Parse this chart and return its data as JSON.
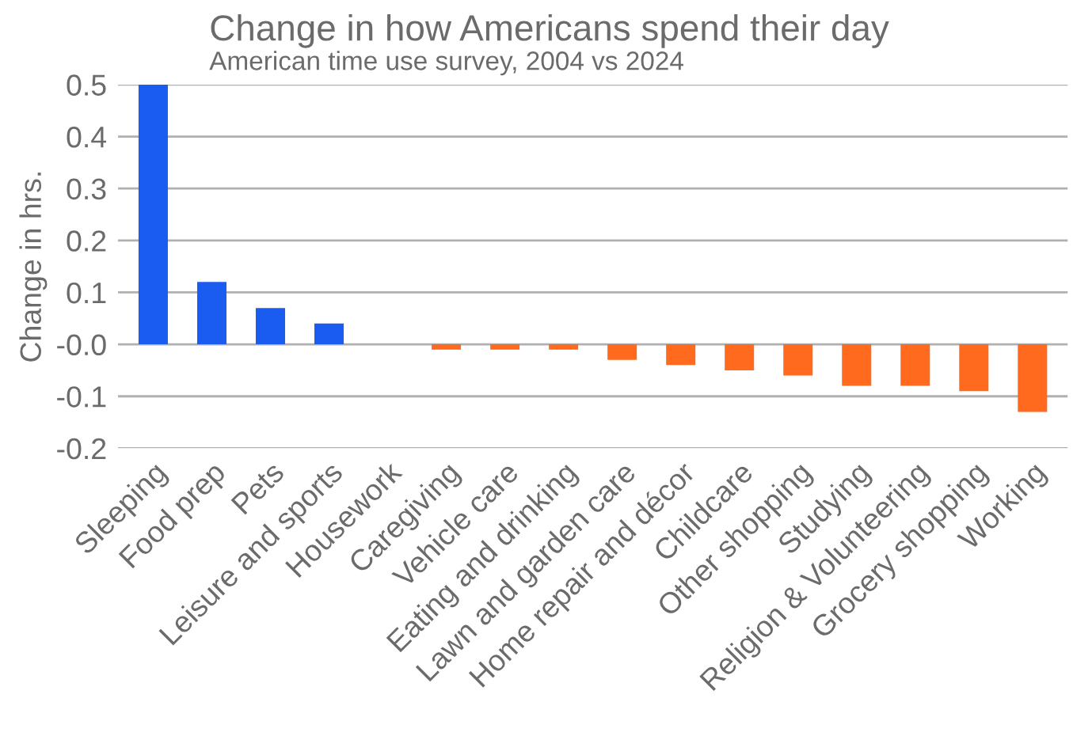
{
  "chart_data": {
    "type": "bar",
    "title": "Change in how Americans spend their day",
    "subtitle": "American time use survey, 2004 vs 2024",
    "ylabel": "Change in hrs.",
    "categories": [
      "Sleeping",
      "Food prep",
      "Pets",
      "Leisure and sports",
      "Housework",
      "Caregiving",
      "Vehicle care",
      "Eating and drinking",
      "Lawn and garden care",
      "Home repair and décor",
      "Childcare",
      "Other shopping",
      "Studying",
      "Religion & Volunteering",
      "Grocery shopping",
      "Working"
    ],
    "values": [
      0.5,
      0.12,
      0.07,
      0.04,
      0,
      -0.01,
      -0.01,
      -0.01,
      -0.03,
      -0.04,
      -0.05,
      -0.06,
      -0.08,
      -0.08,
      -0.09,
      -0.13
    ],
    "colors": [
      "#1a5cf0",
      "#1a5cf0",
      "#1a5cf0",
      "#1a5cf0",
      "#1a5cf0",
      "#ff6a1f",
      "#ff6a1f",
      "#ff6a1f",
      "#ff6a1f",
      "#ff6a1f",
      "#ff6a1f",
      "#ff6a1f",
      "#ff6a1f",
      "#ff6a1f",
      "#ff6a1f",
      "#ff6a1f"
    ],
    "ylim": [
      -0.2,
      0.5
    ],
    "yticks": [
      0.5,
      0.4,
      0.3,
      0.2,
      0.1,
      {
        "value": 0,
        "label": "-0.0"
      },
      -0.1,
      -0.2
    ],
    "grid": "y",
    "legend": false
  }
}
